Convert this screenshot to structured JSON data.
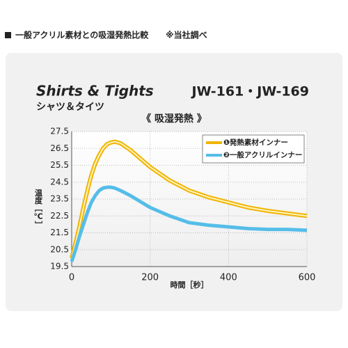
{
  "chart_data": {
    "type": "line",
    "header": "一般アクリル素材との吸湿発熱比較",
    "note": "※当社調べ",
    "title": "Shirts & Tights",
    "subtitle": "シャツ＆タイツ",
    "model": "JW-161・JW-169",
    "chart_title": "《 吸湿発熱 》",
    "ylabel": "温度［℃］",
    "xlabel": "時間［秒］",
    "x": [
      0,
      10,
      20,
      30,
      40,
      50,
      60,
      70,
      80,
      90,
      100,
      110,
      125,
      150,
      175,
      200,
      250,
      300,
      350,
      400,
      450,
      500,
      550,
      600
    ],
    "series": [
      {
        "name": "❶発熱素材インナー",
        "color": "#f0b400",
        "values": [
          20.0,
          20.9,
          21.9,
          23.0,
          24.0,
          24.9,
          25.6,
          26.1,
          26.5,
          26.75,
          26.85,
          26.9,
          26.8,
          26.4,
          25.9,
          25.4,
          24.6,
          24.0,
          23.6,
          23.3,
          23.0,
          22.8,
          22.65,
          22.5
        ]
      },
      {
        "name": "❷一般アクリルインナー",
        "color": "#55bde8",
        "values": [
          19.8,
          20.5,
          21.3,
          22.0,
          22.7,
          23.3,
          23.7,
          24.0,
          24.15,
          24.2,
          24.2,
          24.15,
          24.0,
          23.7,
          23.35,
          23.0,
          22.5,
          22.1,
          21.95,
          21.85,
          21.75,
          21.7,
          21.7,
          21.65
        ]
      }
    ],
    "xlim": [
      0,
      600
    ],
    "xticks": [
      0,
      200,
      400,
      600
    ],
    "ylim": [
      19.5,
      27.5
    ],
    "yticks": [
      19.5,
      20.5,
      21.5,
      22.5,
      23.5,
      24.5,
      25.5,
      26.5,
      27.5
    ],
    "grid": true,
    "legend": "upper right"
  }
}
